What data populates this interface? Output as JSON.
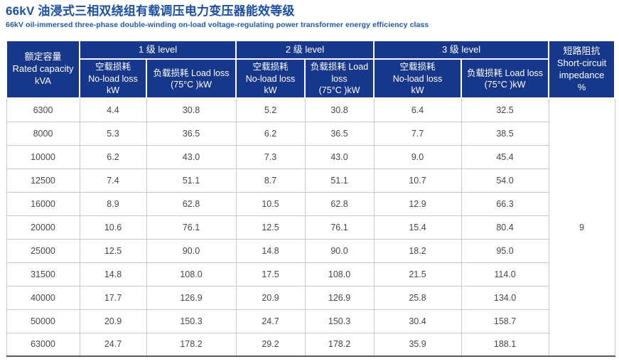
{
  "page": {
    "title": "66kV 油浸式三相双绕组有载调压电力变压器能效等级",
    "subtitle": "66kV oil-immersed three-phase double-winding on-load voltage-regulating power transformer energy efficiency class"
  },
  "colors": {
    "header_bg": "#17378a",
    "title_text": "#1d4fa0",
    "subtitle_text": "#2258a8",
    "body_text": "#474747",
    "grid_border": "#c9c9c9",
    "bottom_border": "#5a5a5a"
  },
  "table": {
    "header": {
      "rated_capacity": "额定容量\nRated capacity\nkVA",
      "groups": [
        "1 级 level",
        "2 级 level",
        "3 级 level"
      ],
      "no_load": "空载损耗\nNo-load loss\nkW",
      "load_loss": "负载损耗 Load loss\n(75°C )kW",
      "load_loss_narrow": "负载损耗 Load\nloss\n(75°C )kW",
      "impedance": "短路阻抗\nShort-circuit\nimpedance\n%"
    },
    "impedance_value": "9",
    "row_keys": [
      "capacity",
      "l1_noload",
      "l1_load",
      "l2_noload",
      "l2_load",
      "l3_noload",
      "l3_load"
    ],
    "rows": [
      {
        "capacity": "6300",
        "l1_noload": "4.4",
        "l1_load": "30.8",
        "l2_noload": "5.2",
        "l2_load": "30.8",
        "l3_noload": "6.4",
        "l3_load": "32.5"
      },
      {
        "capacity": "8000",
        "l1_noload": "5.3",
        "l1_load": "36.5",
        "l2_noload": "6.2",
        "l2_load": "36.5",
        "l3_noload": "7.7",
        "l3_load": "38.5"
      },
      {
        "capacity": "10000",
        "l1_noload": "6.2",
        "l1_load": "43.0",
        "l2_noload": "7.3",
        "l2_load": "43.0",
        "l3_noload": "9.0",
        "l3_load": "45.4"
      },
      {
        "capacity": "12500",
        "l1_noload": "7.4",
        "l1_load": "51.1",
        "l2_noload": "8.7",
        "l2_load": "51.1",
        "l3_noload": "10.7",
        "l3_load": "54.0"
      },
      {
        "capacity": "16000",
        "l1_noload": "8.9",
        "l1_load": "62.8",
        "l2_noload": "10.5",
        "l2_load": "62.8",
        "l3_noload": "12.9",
        "l3_load": "66.3"
      },
      {
        "capacity": "20000",
        "l1_noload": "10.6",
        "l1_load": "76.1",
        "l2_noload": "12.5",
        "l2_load": "76.1",
        "l3_noload": "15.4",
        "l3_load": "80.4"
      },
      {
        "capacity": "25000",
        "l1_noload": "12.5",
        "l1_load": "90.0",
        "l2_noload": "14.8",
        "l2_load": "90.0",
        "l3_noload": "18.2",
        "l3_load": "95.0"
      },
      {
        "capacity": "31500",
        "l1_noload": "14.8",
        "l1_load": "108.0",
        "l2_noload": "17.5",
        "l2_load": "108.0",
        "l3_noload": "21.5",
        "l3_load": "114.0"
      },
      {
        "capacity": "40000",
        "l1_noload": "17.7",
        "l1_load": "126.9",
        "l2_noload": "20.9",
        "l2_load": "126.9",
        "l3_noload": "25.8",
        "l3_load": "134.0"
      },
      {
        "capacity": "50000",
        "l1_noload": "20.9",
        "l1_load": "150.3",
        "l2_noload": "24.7",
        "l2_load": "150.3",
        "l3_noload": "30.4",
        "l3_load": "158.7"
      },
      {
        "capacity": "63000",
        "l1_noload": "24.7",
        "l1_load": "178.2",
        "l2_noload": "29.2",
        "l2_load": "178.2",
        "l3_noload": "35.9",
        "l3_load": "188.1"
      }
    ]
  }
}
